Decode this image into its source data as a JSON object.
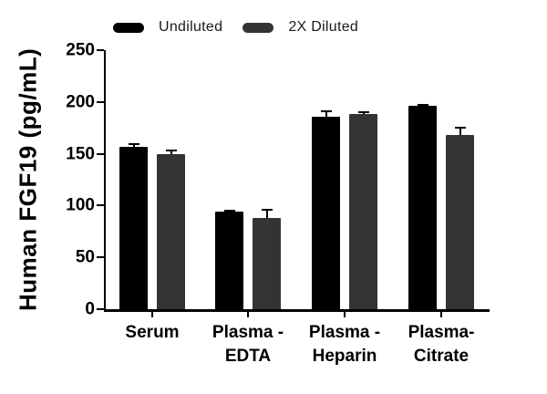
{
  "figure": {
    "background": "#ffffff"
  },
  "legend": {
    "items": [
      {
        "label": "Undiluted",
        "color": "#000000"
      },
      {
        "label": "2X Diluted",
        "color": "#333333"
      }
    ]
  },
  "chart_data": {
    "type": "bar",
    "title": "",
    "xlabel": "",
    "ylabel": "Human FGF19 (pg/mL)",
    "ylim": [
      0,
      250
    ],
    "yticks": [
      0,
      50,
      100,
      150,
      200,
      250
    ],
    "grid": false,
    "legend_position": "top",
    "categories": [
      "Serum",
      "Plasma -\nEDTA",
      "Plasma -\nHeparin",
      "Plasma-\nCitrate"
    ],
    "series": [
      {
        "name": "Undiluted",
        "color": "#000000",
        "values": [
          157,
          94,
          186,
          196
        ],
        "errors": [
          2,
          1,
          5,
          1
        ]
      },
      {
        "name": "2X Diluted",
        "color": "#333333",
        "values": [
          150,
          88,
          188,
          168
        ],
        "errors": [
          3,
          8,
          2,
          7
        ]
      }
    ]
  }
}
